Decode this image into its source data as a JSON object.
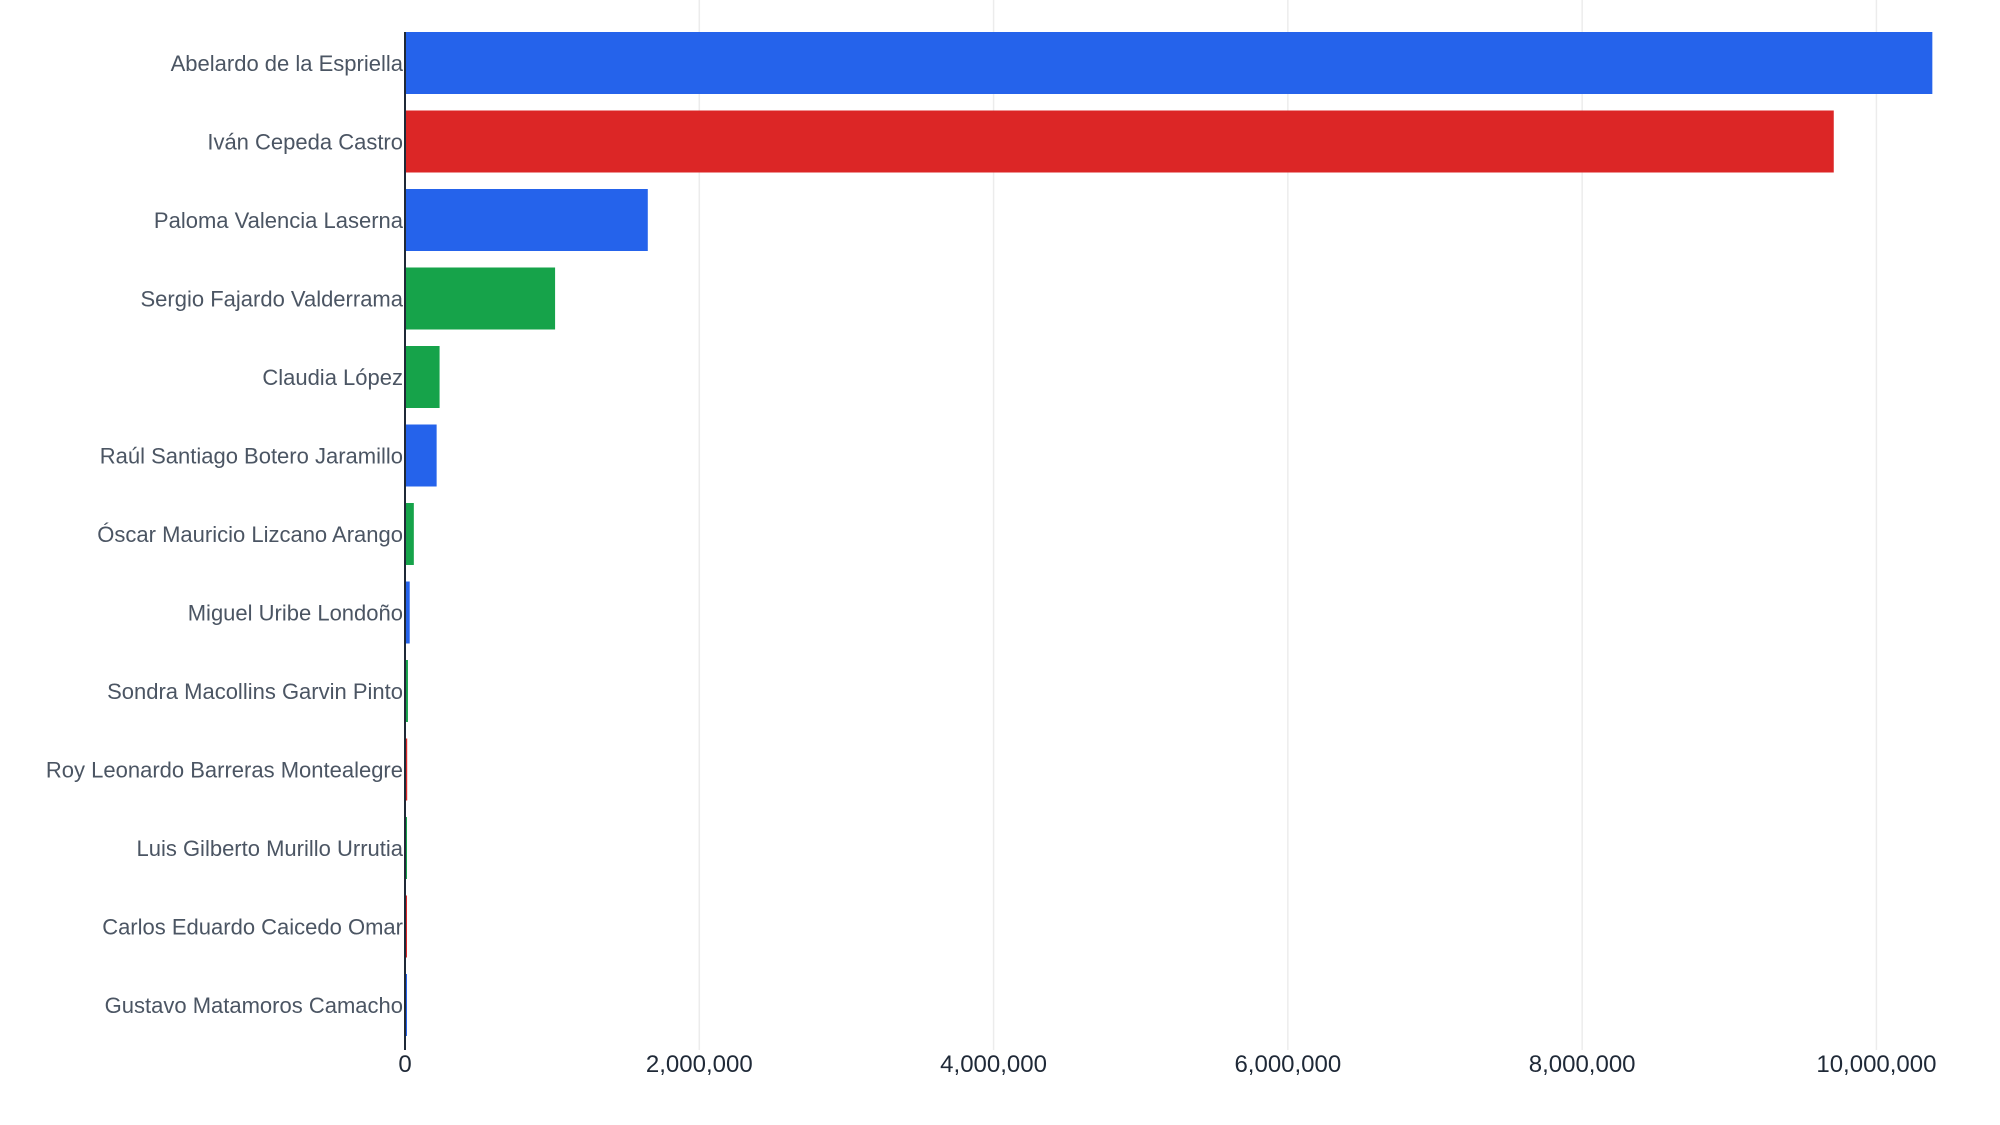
{
  "chart_data": {
    "type": "bar",
    "orientation": "horizontal",
    "title": "",
    "xlabel": "",
    "ylabel": "",
    "xlim": [
      0,
      10500000
    ],
    "x_ticks": [
      0,
      2000000,
      4000000,
      6000000,
      8000000,
      10000000
    ],
    "x_tick_labels": [
      "0",
      "2,000,000",
      "4,000,000",
      "6,000,000",
      "8,000,000",
      "10,000,000"
    ],
    "grid": "vertical",
    "legend": "none",
    "colors": {
      "blue": "#2563eb",
      "red": "#dc2626",
      "green": "#16a34a"
    },
    "categories": [
      "Abelardo de la Espriella",
      "Iván Cepeda Castro",
      "Paloma Valencia Laserna",
      "Sergio Fajardo Valderrama",
      "Claudia López",
      "Raúl Santiago Botero Jaramillo",
      "Óscar Mauricio Lizcano Arango",
      "Miguel Uribe Londoño",
      "Sondra Macollins Garvin Pinto",
      "Roy Leonardo Barreras Montealegre",
      "Luis Gilberto Murillo Urrutia",
      "Carlos Eduardo Caicedo Omar",
      "Gustavo Matamoros Camacho"
    ],
    "values": [
      10380000,
      9710000,
      1650000,
      1020000,
      235000,
      215000,
      60000,
      32000,
      20000,
      15000,
      12000,
      11000,
      6000
    ],
    "bar_colors": [
      "#2563eb",
      "#dc2626",
      "#2563eb",
      "#16a34a",
      "#16a34a",
      "#2563eb",
      "#16a34a",
      "#2563eb",
      "#16a34a",
      "#dc2626",
      "#16a34a",
      "#dc2626",
      "#2563eb"
    ]
  }
}
